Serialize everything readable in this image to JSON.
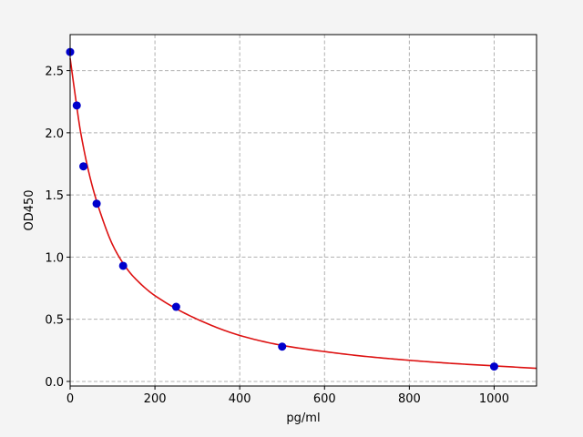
{
  "chart_data": {
    "type": "scatter",
    "title": "",
    "xlabel": "pg/ml",
    "ylabel": "OD450",
    "xlim": [
      0,
      1100
    ],
    "ylim": [
      -0.037,
      2.79
    ],
    "xticks": [
      0,
      200,
      400,
      600,
      800,
      1000
    ],
    "xtick_labels": [
      "0",
      "200",
      "400",
      "600",
      "800",
      "1000"
    ],
    "yticks": [
      0.0,
      0.5,
      1.0,
      1.5,
      2.0,
      2.5
    ],
    "ytick_labels": [
      "0.0",
      "0.5",
      "1.0",
      "1.5",
      "2.0",
      "2.5"
    ],
    "grid": true,
    "series": [
      {
        "kind": "points",
        "color": "#0000cc",
        "x": [
          0,
          15.6,
          31.25,
          62.5,
          125,
          250,
          500,
          1000
        ],
        "y": [
          2.65,
          2.22,
          1.73,
          1.43,
          0.93,
          0.6,
          0.28,
          0.12
        ]
      },
      {
        "kind": "fit-curve",
        "color": "#dd1111",
        "x": [
          0,
          10,
          25,
          50,
          75,
          100,
          125,
          150,
          200,
          300,
          400,
          500,
          600,
          700,
          800,
          900,
          1000,
          1100
        ],
        "y": [
          2.6,
          2.35,
          2.0,
          1.6,
          1.32,
          1.1,
          0.95,
          0.84,
          0.69,
          0.5,
          0.37,
          0.29,
          0.24,
          0.2,
          0.17,
          0.145,
          0.125,
          0.105
        ]
      }
    ]
  }
}
